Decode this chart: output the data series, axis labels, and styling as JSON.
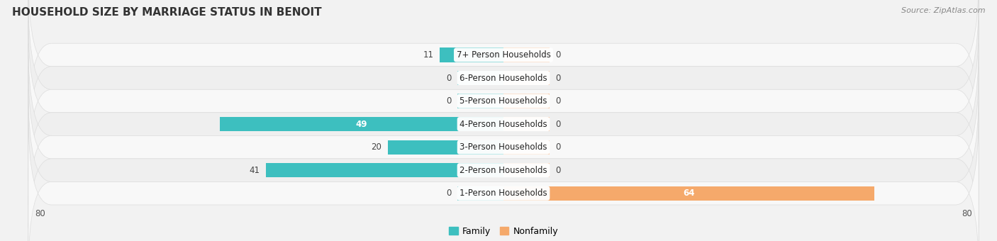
{
  "title": "HOUSEHOLD SIZE BY MARRIAGE STATUS IN BENOIT",
  "source": "Source: ZipAtlas.com",
  "categories": [
    "7+ Person Households",
    "6-Person Households",
    "5-Person Households",
    "4-Person Households",
    "3-Person Households",
    "2-Person Households",
    "1-Person Households"
  ],
  "family": [
    11,
    0,
    0,
    49,
    20,
    41,
    0
  ],
  "nonfamily": [
    0,
    0,
    0,
    0,
    0,
    0,
    64
  ],
  "family_color": "#3DBFBF",
  "family_color_light": "#8DD8D8",
  "nonfamily_color": "#F5A96B",
  "nonfamily_color_light": "#F8CAAA",
  "xlim_left": -80,
  "xlim_right": 80,
  "bar_height": 0.62,
  "stub_size": 8,
  "background_color": "#f2f2f2",
  "row_colors": [
    "#f8f8f8",
    "#efefef"
  ],
  "label_fontsize": 8.5,
  "value_fontsize": 8.5,
  "title_fontsize": 11,
  "source_fontsize": 8,
  "legend_fontsize": 9,
  "tick_fontsize": 8.5
}
